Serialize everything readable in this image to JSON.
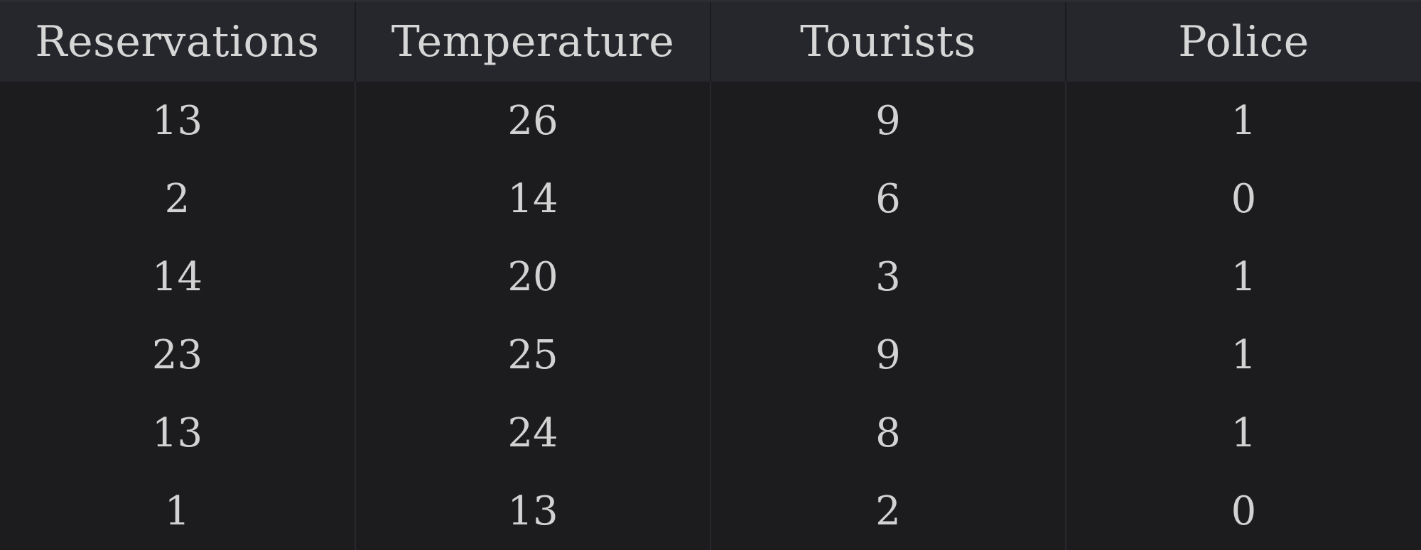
{
  "table": {
    "columns": [
      "Reservations",
      "Temperature",
      "Tourists",
      "Police"
    ],
    "rows": [
      [
        "13",
        "26",
        "9",
        "1"
      ],
      [
        "2",
        "14",
        "6",
        "0"
      ],
      [
        "14",
        "20",
        "3",
        "1"
      ],
      [
        "23",
        "25",
        "9",
        "1"
      ],
      [
        "13",
        "24",
        "8",
        "1"
      ],
      [
        "1",
        "13",
        "2",
        "0"
      ]
    ]
  },
  "colors": {
    "background": "#1c1c1e",
    "header_background": "#26272c",
    "text": "#d2d2d2",
    "grid_line": "#29292d"
  }
}
